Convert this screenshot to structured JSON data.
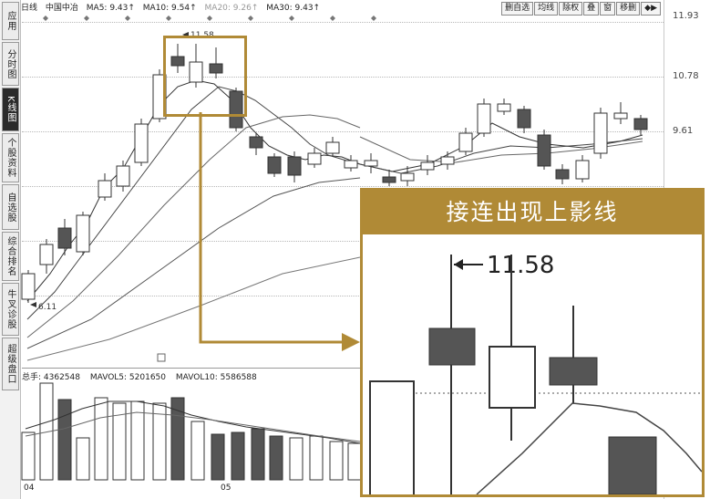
{
  "sidebar": {
    "tabs": [
      {
        "label": "应用",
        "active": false
      },
      {
        "label": "分时图",
        "active": false
      },
      {
        "label": "K线图",
        "active": true
      },
      {
        "label": "个股资料",
        "active": false
      },
      {
        "label": "自选股",
        "active": false
      },
      {
        "label": "综合排名",
        "active": false
      },
      {
        "label": "牛叉诊股",
        "active": false
      },
      {
        "label": "超级盘口",
        "active": false
      }
    ]
  },
  "header": {
    "period": "日线",
    "stock_name": "中国中冶",
    "ma5": "MA5: 9.43↑",
    "ma10": "MA10: 9.54↑",
    "ma20": "MA20: 9.26↑",
    "ma30": "MA30: 9.43↑"
  },
  "toolbar": {
    "buttons": [
      "删自选",
      "均线",
      "除权",
      "叠",
      "窗",
      "移删",
      "◆▶"
    ]
  },
  "price_axis": {
    "labels": [
      "11.93",
      "10.78",
      "9.61"
    ]
  },
  "annotations": {
    "high_marker": "11.58",
    "low_marker": "6.11",
    "inset_price": "11.58"
  },
  "volume_panel": {
    "total": "总手: 4362548",
    "mavol5": "MAVOL5: 5201650",
    "mavol10": "MAVOL10: 5586588"
  },
  "dates": {
    "d1": "04",
    "d2": "05"
  },
  "inset": {
    "title": "接连出现上影线"
  },
  "colors": {
    "accent_gold": "#b08a36",
    "bear_fill": "#555555",
    "bull_fill": "#ffffff"
  }
}
